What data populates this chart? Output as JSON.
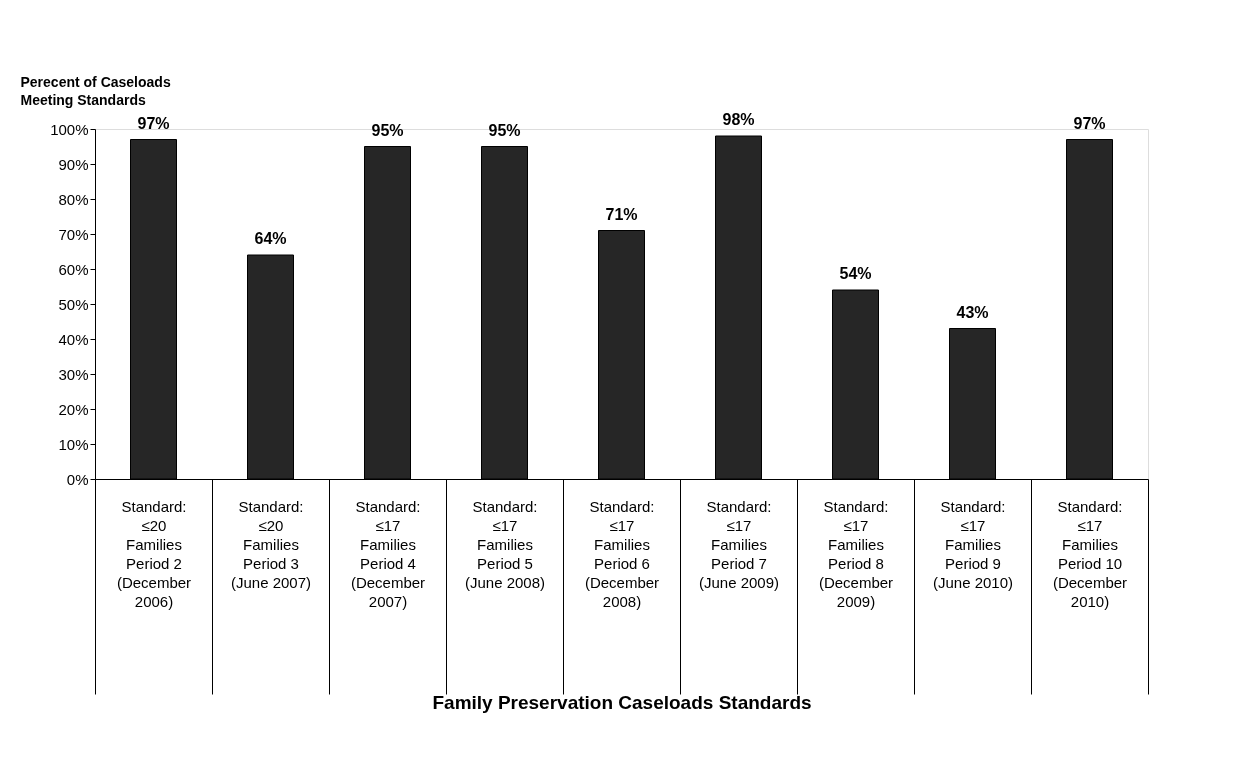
{
  "chart_data": {
    "type": "bar",
    "xlabel": "Family Preservation Caseloads Standards",
    "ylabel": "Perecent of Caseloads\nMeeting Standards",
    "categories": [
      "Standard:\n≤20\nFamilies\n\nPeriod 2\n(December\n2006)",
      "Standard:\n≤20\nFamilies\n\nPeriod 3\n(June 2007)",
      "Standard:\n≤17\nFamilies\n\nPeriod 4\n(December\n2007)",
      "Standard:\n≤17\nFamilies\n\nPeriod 5\n(June 2008)",
      "Standard:\n≤17\nFamilies\n\nPeriod 6\n(December\n2008)",
      "Standard:\n≤17\nFamilies\n\nPeriod 7\n(June 2009)",
      "Standard:\n≤17\nFamilies\n\nPeriod 8\n(December\n2009)",
      "Standard:\n≤17\nFamilies\n\nPeriod 9\n(June 2010)",
      "Standard:\n≤17\nFamilies\n\nPeriod 10\n(December\n2010)"
    ],
    "values": [
      97,
      64,
      95,
      95,
      71,
      98,
      54,
      43,
      97
    ],
    "value_labels": [
      "97%",
      "64%",
      "95%",
      "95%",
      "71%",
      "98%",
      "54%",
      "43%",
      "97%"
    ],
    "color": "#262626",
    "ylim": [
      0,
      100
    ],
    "yticks": [
      {
        "value": 0,
        "label": "0%"
      },
      {
        "value": 10,
        "label": "10%"
      },
      {
        "value": 20,
        "label": "20%"
      },
      {
        "value": 30,
        "label": "30%"
      },
      {
        "value": 40,
        "label": "40%"
      },
      {
        "value": 50,
        "label": "50%"
      },
      {
        "value": 60,
        "label": "60%"
      },
      {
        "value": 70,
        "label": "70%"
      },
      {
        "value": 80,
        "label": "80%"
      },
      {
        "value": 90,
        "label": "90%"
      },
      {
        "value": 100,
        "label": "100%"
      }
    ],
    "grid": false
  }
}
